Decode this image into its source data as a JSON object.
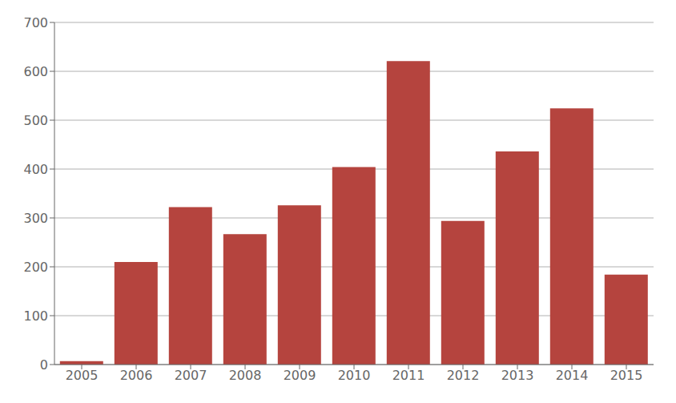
{
  "chart_data": {
    "type": "bar",
    "categories": [
      "2005",
      "2006",
      "2007",
      "2008",
      "2009",
      "2010",
      "2011",
      "2012",
      "2013",
      "2014",
      "2015"
    ],
    "values": [
      7,
      210,
      322,
      267,
      326,
      404,
      621,
      294,
      436,
      524,
      184
    ],
    "color": "#b5443e",
    "ylim": [
      0,
      700
    ],
    "yticks": [
      0,
      100,
      200,
      300,
      400,
      500,
      600,
      700
    ],
    "grid": true
  }
}
